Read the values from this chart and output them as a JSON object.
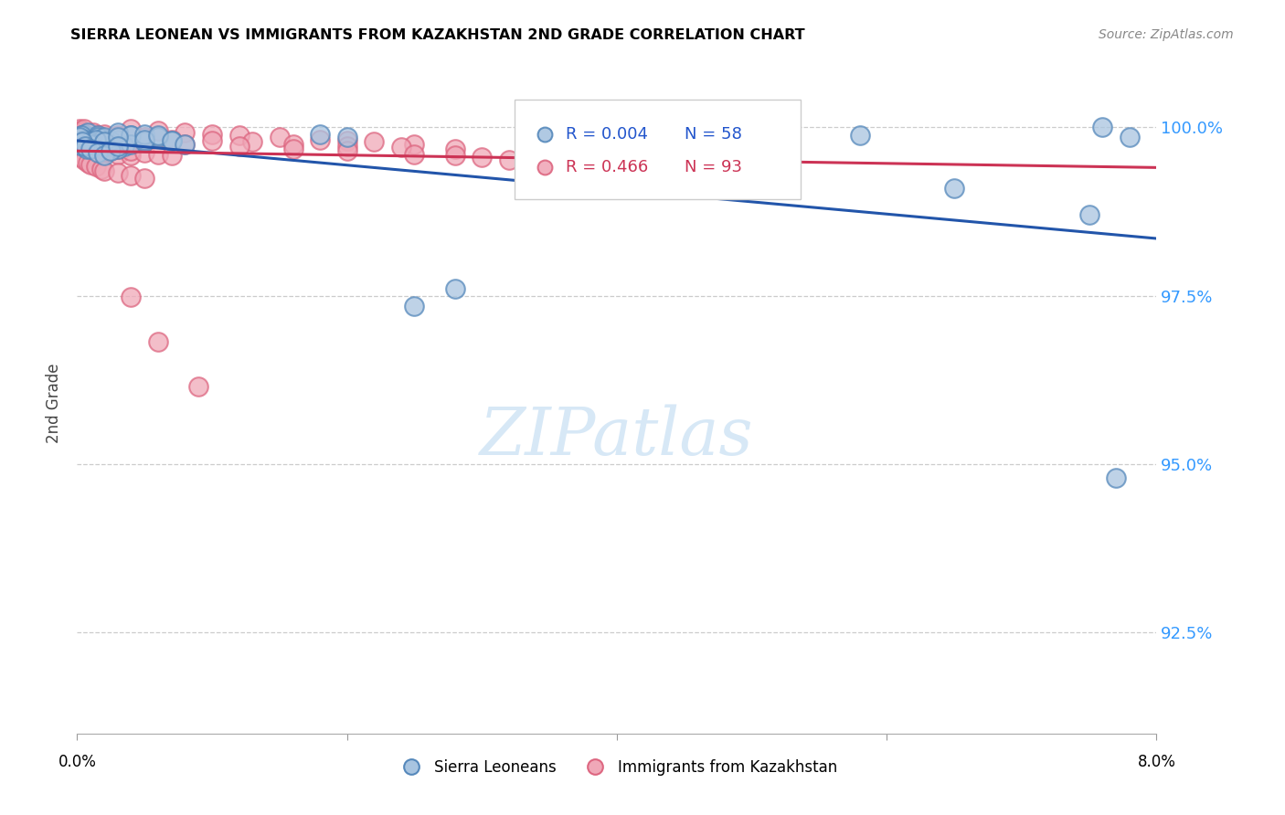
{
  "title": "SIERRA LEONEAN VS IMMIGRANTS FROM KAZAKHSTAN 2ND GRADE CORRELATION CHART",
  "source": "Source: ZipAtlas.com",
  "ylabel": "2nd Grade",
  "ytick_labels": [
    "100.0%",
    "97.5%",
    "95.0%",
    "92.5%"
  ],
  "ytick_values": [
    1.0,
    0.975,
    0.95,
    0.925
  ],
  "xmin": 0.0,
  "xmax": 0.08,
  "ymin": 0.91,
  "ymax": 1.008,
  "legend_r1": "R = 0.004",
  "legend_n1": "N = 58",
  "legend_r2": "R = 0.466",
  "legend_n2": "N = 93",
  "legend_label1": "Sierra Leoneans",
  "legend_label2": "Immigrants from Kazakhstan",
  "color_blue_face": "#A8C4E0",
  "color_blue_edge": "#5588BB",
  "color_pink_face": "#F0A8B8",
  "color_pink_edge": "#DD6680",
  "trend_blue_color": "#2255AA",
  "trend_pink_color": "#CC3355",
  "blue_scatter_x": [
    0.0005,
    0.001,
    0.0008,
    0.0015,
    0.002,
    0.0018,
    0.003,
    0.0025,
    0.004,
    0.0035,
    0.0005,
    0.0008,
    0.001,
    0.0015,
    0.0012,
    0.002,
    0.003,
    0.0025,
    0.004,
    0.005,
    0.0003,
    0.0006,
    0.0009,
    0.0012,
    0.002,
    0.003,
    0.004,
    0.005,
    0.006,
    0.007,
    0.0004,
    0.0007,
    0.001,
    0.0014,
    0.002,
    0.003,
    0.005,
    0.006,
    0.007,
    0.008,
    0.0002,
    0.0004,
    0.0006,
    0.001,
    0.0015,
    0.002,
    0.0025,
    0.003,
    0.018,
    0.02,
    0.025,
    0.028,
    0.058,
    0.065,
    0.075,
    0.076,
    0.078,
    0.077
  ],
  "blue_scatter_y": [
    0.999,
    0.9985,
    0.9992,
    0.9988,
    0.9983,
    0.9978,
    0.9982,
    0.9975,
    0.9988,
    0.9972,
    0.998,
    0.9975,
    0.997,
    0.9985,
    0.9978,
    0.9972,
    0.9968,
    0.998,
    0.9975,
    0.9978,
    0.9988,
    0.9982,
    0.9978,
    0.9975,
    0.9985,
    0.9992,
    0.9988,
    0.999,
    0.9985,
    0.998,
    0.9972,
    0.9968,
    0.9975,
    0.9982,
    0.9978,
    0.9985,
    0.9982,
    0.9988,
    0.998,
    0.9975,
    0.9985,
    0.9978,
    0.9972,
    0.9968,
    0.9962,
    0.9958,
    0.9965,
    0.9972,
    0.999,
    0.9985,
    0.9735,
    0.976,
    0.9988,
    0.991,
    0.987,
    1.0,
    0.9985,
    0.948
  ],
  "pink_scatter_x": [
    0.0002,
    0.0003,
    0.0004,
    0.0005,
    0.0006,
    0.0007,
    0.0008,
    0.001,
    0.0012,
    0.0015,
    0.0002,
    0.0004,
    0.0006,
    0.0008,
    0.001,
    0.0012,
    0.0015,
    0.0018,
    0.002,
    0.0025,
    0.0003,
    0.0005,
    0.0007,
    0.001,
    0.0013,
    0.0016,
    0.002,
    0.0025,
    0.003,
    0.0035,
    0.0002,
    0.0004,
    0.0006,
    0.0009,
    0.0012,
    0.0015,
    0.002,
    0.0025,
    0.003,
    0.004,
    0.0003,
    0.0005,
    0.0008,
    0.001,
    0.0014,
    0.0018,
    0.002,
    0.003,
    0.004,
    0.005,
    0.0004,
    0.0007,
    0.001,
    0.0015,
    0.002,
    0.003,
    0.004,
    0.005,
    0.006,
    0.007,
    0.004,
    0.006,
    0.008,
    0.01,
    0.012,
    0.015,
    0.018,
    0.02,
    0.022,
    0.025,
    0.002,
    0.003,
    0.005,
    0.007,
    0.01,
    0.013,
    0.016,
    0.02,
    0.024,
    0.028,
    0.003,
    0.005,
    0.008,
    0.012,
    0.016,
    0.02,
    0.025,
    0.028,
    0.03,
    0.032,
    0.004,
    0.006,
    0.009
  ],
  "pink_scatter_y": [
    0.9998,
    0.9995,
    0.9992,
    0.9998,
    0.999,
    0.9988,
    0.9985,
    0.9988,
    0.9992,
    0.9988,
    0.9985,
    0.9982,
    0.9978,
    0.9975,
    0.998,
    0.9975,
    0.9982,
    0.9978,
    0.9975,
    0.997,
    0.9988,
    0.9985,
    0.9982,
    0.9978,
    0.9975,
    0.998,
    0.9975,
    0.9978,
    0.9975,
    0.997,
    0.9972,
    0.9968,
    0.9965,
    0.996,
    0.9955,
    0.9958,
    0.9962,
    0.9965,
    0.996,
    0.9958,
    0.9955,
    0.9952,
    0.9948,
    0.9945,
    0.9942,
    0.9938,
    0.9935,
    0.9932,
    0.9928,
    0.9925,
    0.9982,
    0.9978,
    0.9975,
    0.9972,
    0.997,
    0.9968,
    0.9965,
    0.9962,
    0.996,
    0.9958,
    0.9998,
    0.9995,
    0.9992,
    0.999,
    0.9988,
    0.9985,
    0.9982,
    0.998,
    0.9978,
    0.9975,
    0.999,
    0.9988,
    0.9985,
    0.9982,
    0.998,
    0.9978,
    0.9975,
    0.9972,
    0.997,
    0.9968,
    0.998,
    0.9978,
    0.9975,
    0.9972,
    0.9968,
    0.9965,
    0.996,
    0.9958,
    0.9955,
    0.9952,
    0.9748,
    0.9682,
    0.9615
  ]
}
